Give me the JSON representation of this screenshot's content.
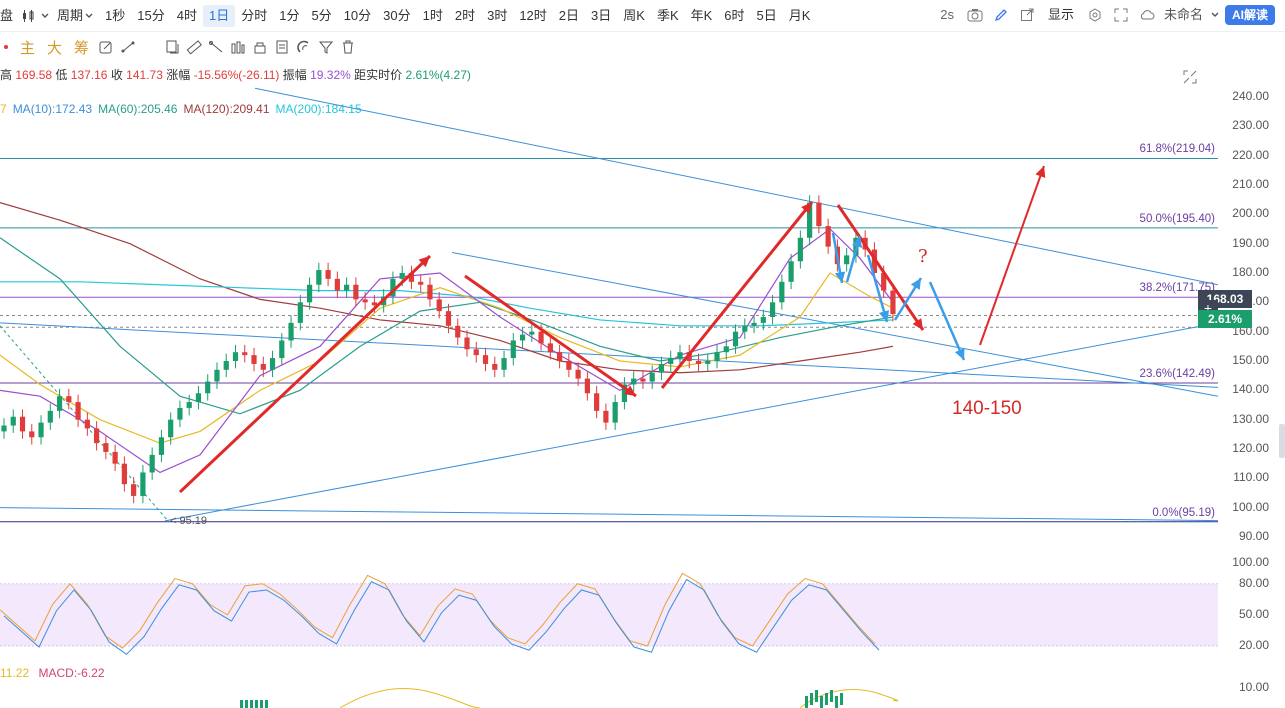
{
  "toolbar": {
    "market_label": "盘",
    "period_label": "周期",
    "periods": [
      "1秒",
      "15分",
      "4时",
      "1日",
      "分时",
      "1分",
      "5分",
      "10分",
      "30分",
      "1时",
      "2时",
      "3时",
      "12时",
      "2日",
      "3日",
      "周K",
      "季K",
      "年K",
      "6时",
      "5日",
      "月K"
    ],
    "active_period": "1日",
    "refresh_interval": "2s",
    "display_label": "显示",
    "workspace_name": "未命名",
    "ai_button": "AI解读"
  },
  "indicator_tabs": [
    "主",
    "大",
    "筹"
  ],
  "ohlc": {
    "high_label": "高",
    "high": "169.58",
    "low_label": "低",
    "low": "137.16",
    "close_label": "收",
    "close": "141.73",
    "change_label": "涨幅",
    "change": "-15.56%(-26.11)",
    "amplitude_label": "振幅",
    "amplitude": "19.32%",
    "live_label": "距实时价",
    "live": "2.61%(4.27)"
  },
  "moving_averages": [
    {
      "label": "7",
      "color": "#e8b923"
    },
    {
      "label": "MA(10):172.43",
      "color": "#3b8fd9"
    },
    {
      "label": "MA(60):205.46",
      "color": "#2a9d8f"
    },
    {
      "label": "MA(120):209.41",
      "color": "#a23b3b"
    },
    {
      "label": "MA(200):184.15",
      "color": "#26c6da"
    }
  ],
  "price_axis": [
    "240.00",
    "230.00",
    "220.00",
    "210.00",
    "200.00",
    "190.00",
    "180.00",
    "170.00",
    "160.00",
    "150.00",
    "140.00",
    "130.00",
    "120.00",
    "110.00",
    "100.00",
    "90.00"
  ],
  "kdj_axis": [
    "100.00",
    "80.00",
    "50.00",
    "20.00"
  ],
  "macd_axis": [
    "10.00"
  ],
  "current_price": "168.03",
  "current_pct": "2.61%",
  "fib_levels": [
    {
      "label": "61.8%(219.04)",
      "value": 219.04
    },
    {
      "label": "50.0%(195.40)",
      "value": 195.4
    },
    {
      "label": "38.2%(171.75)",
      "value": 171.75
    },
    {
      "label": "23.6%(142.49)",
      "value": 142.49
    },
    {
      "label": "0.0%(95.19)",
      "value": 95.19
    }
  ],
  "low_marker": "95.19",
  "annotation_target": "140-150",
  "annotation_question": "?",
  "macd_label_left": "11.22",
  "macd_label": "MACD:-6.22",
  "colors": {
    "up": "#1a9e6b",
    "down": "#e03c3c",
    "accent": "#3d7be8",
    "fib": "#6a3fa0"
  }
}
